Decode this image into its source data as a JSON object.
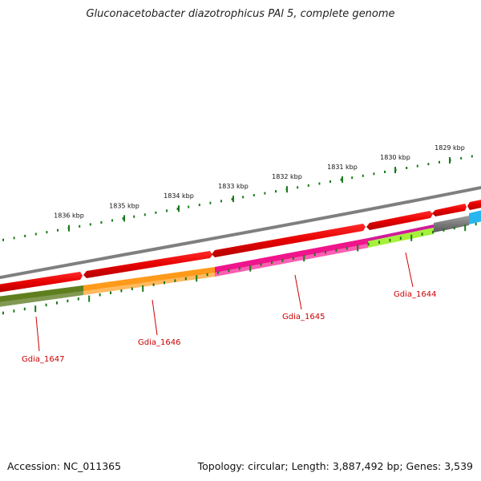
{
  "title": "Gluconacetobacter diazotrophicus PAl 5, complete genome",
  "footer": {
    "accession": "Accession: NC_011365",
    "summary": "Topology: circular; Length: 3,887,492 bp; Genes: 3,539"
  },
  "ruler": {
    "labels": [
      "1836 kbp",
      "1835 kbp",
      "1834 kbp",
      "1833 kbp",
      "1832 kbp",
      "1831 kbp",
      "1830 kbp",
      "1829 kbp"
    ]
  },
  "genes": [
    {
      "name": "Gdia_1647",
      "color": "#5f7f1f"
    },
    {
      "name": "Gdia_1646",
      "color": "#ff9a1a"
    },
    {
      "name": "Gdia_1645",
      "color": "#f0148c"
    },
    {
      "name": "Gdia_1644",
      "color": "#a6f03c"
    }
  ],
  "colors": {
    "backbone": "#808080",
    "forward_strand": "#e60000",
    "tick": "#1a7a1a",
    "label": "#cc0000",
    "gray_feature": "#666666",
    "cyan_feature": "#29b6f0"
  }
}
